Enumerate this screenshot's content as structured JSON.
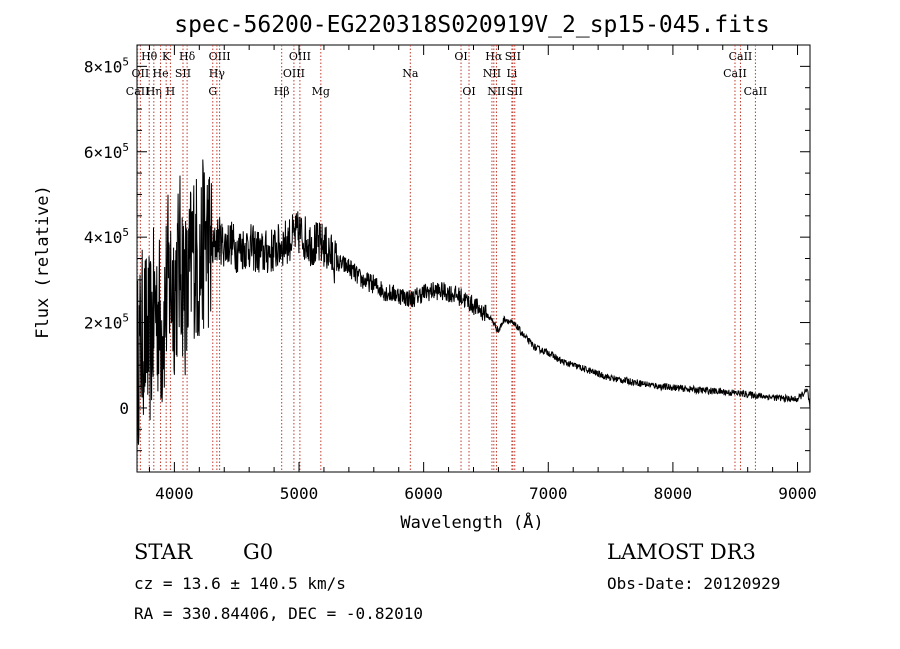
{
  "chart_data": {
    "type": "line",
    "title": "spec-56200-EG220318S020919V_2_sp15-045.fits",
    "xlabel": "Wavelength (Å)",
    "ylabel": "Flux (relative)",
    "xlim": [
      3700,
      9100
    ],
    "ylim": [
      -150000,
      850000
    ],
    "x_ticks": [
      {
        "value": 4000,
        "label": "4000"
      },
      {
        "value": 5000,
        "label": "5000"
      },
      {
        "value": 6000,
        "label": "6000"
      },
      {
        "value": 7000,
        "label": "7000"
      },
      {
        "value": 8000,
        "label": "8000"
      },
      {
        "value": 9000,
        "label": "9000"
      }
    ],
    "y_ticks": [
      {
        "value": 0,
        "mant": "0",
        "exp": ""
      },
      {
        "value": 200000,
        "mant": "2×10",
        "exp": "5"
      },
      {
        "value": 400000,
        "mant": "4×10",
        "exp": "5"
      },
      {
        "value": 600000,
        "mant": "6×10",
        "exp": "5"
      },
      {
        "value": 800000,
        "mant": "8×10",
        "exp": "5"
      }
    ],
    "series": [
      {
        "name": "flux",
        "color": "#000000",
        "x": [
          3700,
          3750,
          3800,
          3850,
          3900,
          3950,
          4000,
          4050,
          4100,
          4150,
          4200,
          4250,
          4300,
          4350,
          4400,
          4450,
          4500,
          4600,
          4700,
          4800,
          4900,
          5000,
          5100,
          5200,
          5300,
          5400,
          5500,
          5600,
          5700,
          5800,
          5900,
          6000,
          6100,
          6200,
          6300,
          6400,
          6500,
          6550,
          6600,
          6650,
          6700,
          6750,
          6800,
          6900,
          7000,
          7100,
          7200,
          7300,
          7400,
          7500,
          7600,
          7700,
          7800,
          7900,
          8000,
          8100,
          8200,
          8300,
          8400,
          8500,
          8600,
          8700,
          8800,
          8900,
          9000,
          9050,
          9080,
          9100
        ],
        "y": [
          100000,
          180000,
          150000,
          250000,
          180000,
          300000,
          280000,
          350000,
          250000,
          380000,
          330000,
          410000,
          360000,
          400000,
          380000,
          390000,
          370000,
          380000,
          360000,
          370000,
          390000,
          410000,
          385000,
          380000,
          340000,
          330000,
          300000,
          290000,
          270000,
          265000,
          255000,
          270000,
          275000,
          270000,
          260000,
          240000,
          220000,
          205000,
          180000,
          210000,
          200000,
          190000,
          170000,
          140000,
          130000,
          110000,
          100000,
          90000,
          80000,
          70000,
          65000,
          60000,
          55000,
          50000,
          48000,
          45000,
          42000,
          40000,
          38000,
          35000,
          32000,
          28000,
          25000,
          22000,
          20000,
          35000,
          40000,
          0
        ]
      }
    ],
    "lines": [
      {
        "label": "Hθ",
        "x": 3798,
        "row": 1
      },
      {
        "label": "OII",
        "x": 3727,
        "row": 2
      },
      {
        "label": "CaII",
        "x": 3705,
        "row": 3
      },
      {
        "label": "Hη",
        "x": 3835,
        "row": 3
      },
      {
        "label": "K",
        "x": 3934,
        "row": 1
      },
      {
        "label": "He",
        "x": 3889,
        "row": 2
      },
      {
        "label": "SII",
        "x": 4069,
        "row": 2
      },
      {
        "label": "H",
        "x": 3968,
        "row": 3
      },
      {
        "label": "Hδ",
        "x": 4102,
        "row": 1
      },
      {
        "label": "OIII",
        "x": 4363,
        "row": 1
      },
      {
        "label": "Hγ",
        "x": 4341,
        "row": 2
      },
      {
        "label": "G",
        "x": 4308,
        "row": 3
      },
      {
        "label": "OIII",
        "x": 5007,
        "row": 1
      },
      {
        "label": "OIII",
        "x": 4959,
        "row": 2
      },
      {
        "label": "Hβ",
        "x": 4861,
        "row": 3
      },
      {
        "label": "Mg",
        "x": 5175,
        "row": 3
      },
      {
        "label": "Na",
        "x": 5893,
        "row": 2
      },
      {
        "label": "OI",
        "x": 6300,
        "row": 1
      },
      {
        "label": "OI",
        "x": 6364,
        "row": 3
      },
      {
        "label": "Hα",
        "x": 6563,
        "row": 1
      },
      {
        "label": "SII",
        "x": 6716,
        "row": 1
      },
      {
        "label": "NII",
        "x": 6548,
        "row": 2
      },
      {
        "label": "Li",
        "x": 6708,
        "row": 2
      },
      {
        "label": "NII",
        "x": 6584,
        "row": 3
      },
      {
        "label": "SII",
        "x": 6731,
        "row": 3
      },
      {
        "label": "CaII",
        "x": 8542,
        "row": 1
      },
      {
        "label": "CaII",
        "x": 8498,
        "row": 2
      },
      {
        "label": "CaII",
        "x": 8662,
        "row": 3
      }
    ]
  },
  "info": {
    "object_class": "STAR",
    "subclass": "G0",
    "survey": "LAMOST DR3",
    "redshift": "cz = 13.6 ± 140.5 km/s",
    "obs_date": "Obs-Date: 20120929",
    "coords": "RA = 330.84406, DEC =  -0.82010"
  }
}
